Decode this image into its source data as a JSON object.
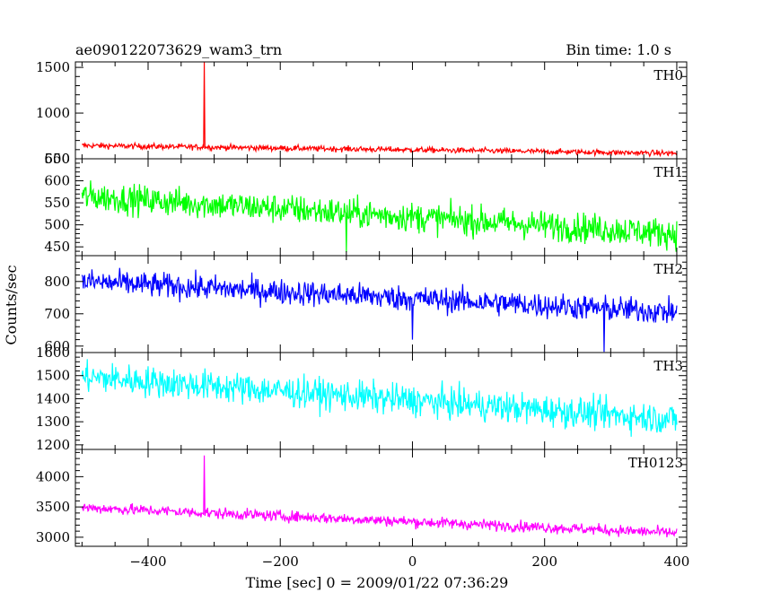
{
  "chart_data": {
    "type": "line",
    "title": "ae090122073629_wam3_trn",
    "bin_label": "Bin time: 1.0 s",
    "xlabel": "Time [sec] 0 = 2009/01/22 07:36:29",
    "ylabel": "Counts/sec",
    "xlim": [
      -510,
      415
    ],
    "x_ticks": [
      -400,
      -200,
      0,
      200,
      400
    ],
    "x_tick_labels": [
      "−400",
      "−200",
      "0",
      "200",
      "400"
    ],
    "grid": false,
    "panels": [
      {
        "name": "TH0",
        "color": "#ff0000",
        "ylim": [
          500,
          1560
        ],
        "y_ticks": [
          500,
          1000,
          1500
        ],
        "y_tick_labels": [
          "500",
          "1000",
          "1500"
        ],
        "trend": {
          "x": [
            -500,
            400
          ],
          "y": [
            645,
            560
          ]
        },
        "noise": 22,
        "spikes": [
          {
            "x": -315,
            "y": 1560
          }
        ],
        "dips": []
      },
      {
        "name": "TH1",
        "color": "#00ff00",
        "ylim": [
          430,
          650
        ],
        "y_ticks": [
          450,
          500,
          550,
          600,
          650
        ],
        "y_tick_labels": [
          "450",
          "500",
          "550",
          "600",
          "650"
        ],
        "trend": {
          "x": [
            -500,
            400
          ],
          "y": [
            565,
            480
          ]
        },
        "noise": 24,
        "spikes": [],
        "dips": [
          {
            "x": -100,
            "y": 438
          }
        ]
      },
      {
        "name": "TH2",
        "color": "#0000ff",
        "ylim": [
          580,
          880
        ],
        "y_ticks": [
          600,
          700,
          800
        ],
        "y_tick_labels": [
          "600",
          "700",
          "800"
        ],
        "trend": {
          "x": [
            -500,
            400
          ],
          "y": [
            800,
            705
          ]
        },
        "noise": 28,
        "spikes": [],
        "dips": [
          {
            "x": 290,
            "y": 582
          },
          {
            "x": 0,
            "y": 620
          }
        ]
      },
      {
        "name": "TH3",
        "color": "#00ffff",
        "ylim": [
          1180,
          1600
        ],
        "y_ticks": [
          1200,
          1300,
          1400,
          1500,
          1600
        ],
        "y_tick_labels": [
          "1200",
          "1300",
          "1400",
          "1500",
          "1600"
        ],
        "trend": {
          "x": [
            -500,
            400
          ],
          "y": [
            1495,
            1310
          ]
        },
        "noise": 48,
        "spikes": [],
        "dips": []
      },
      {
        "name": "TH0123",
        "color": "#ff00ff",
        "ylim": [
          2850,
          4450
        ],
        "y_ticks": [
          3000,
          3500,
          4000
        ],
        "y_tick_labels": [
          "3000",
          "3500",
          "4000"
        ],
        "trend": {
          "x": [
            -500,
            400
          ],
          "y": [
            3490,
            3070
          ]
        },
        "noise": 65,
        "spikes": [
          {
            "x": -315,
            "y": 4350
          }
        ],
        "dips": []
      }
    ]
  }
}
